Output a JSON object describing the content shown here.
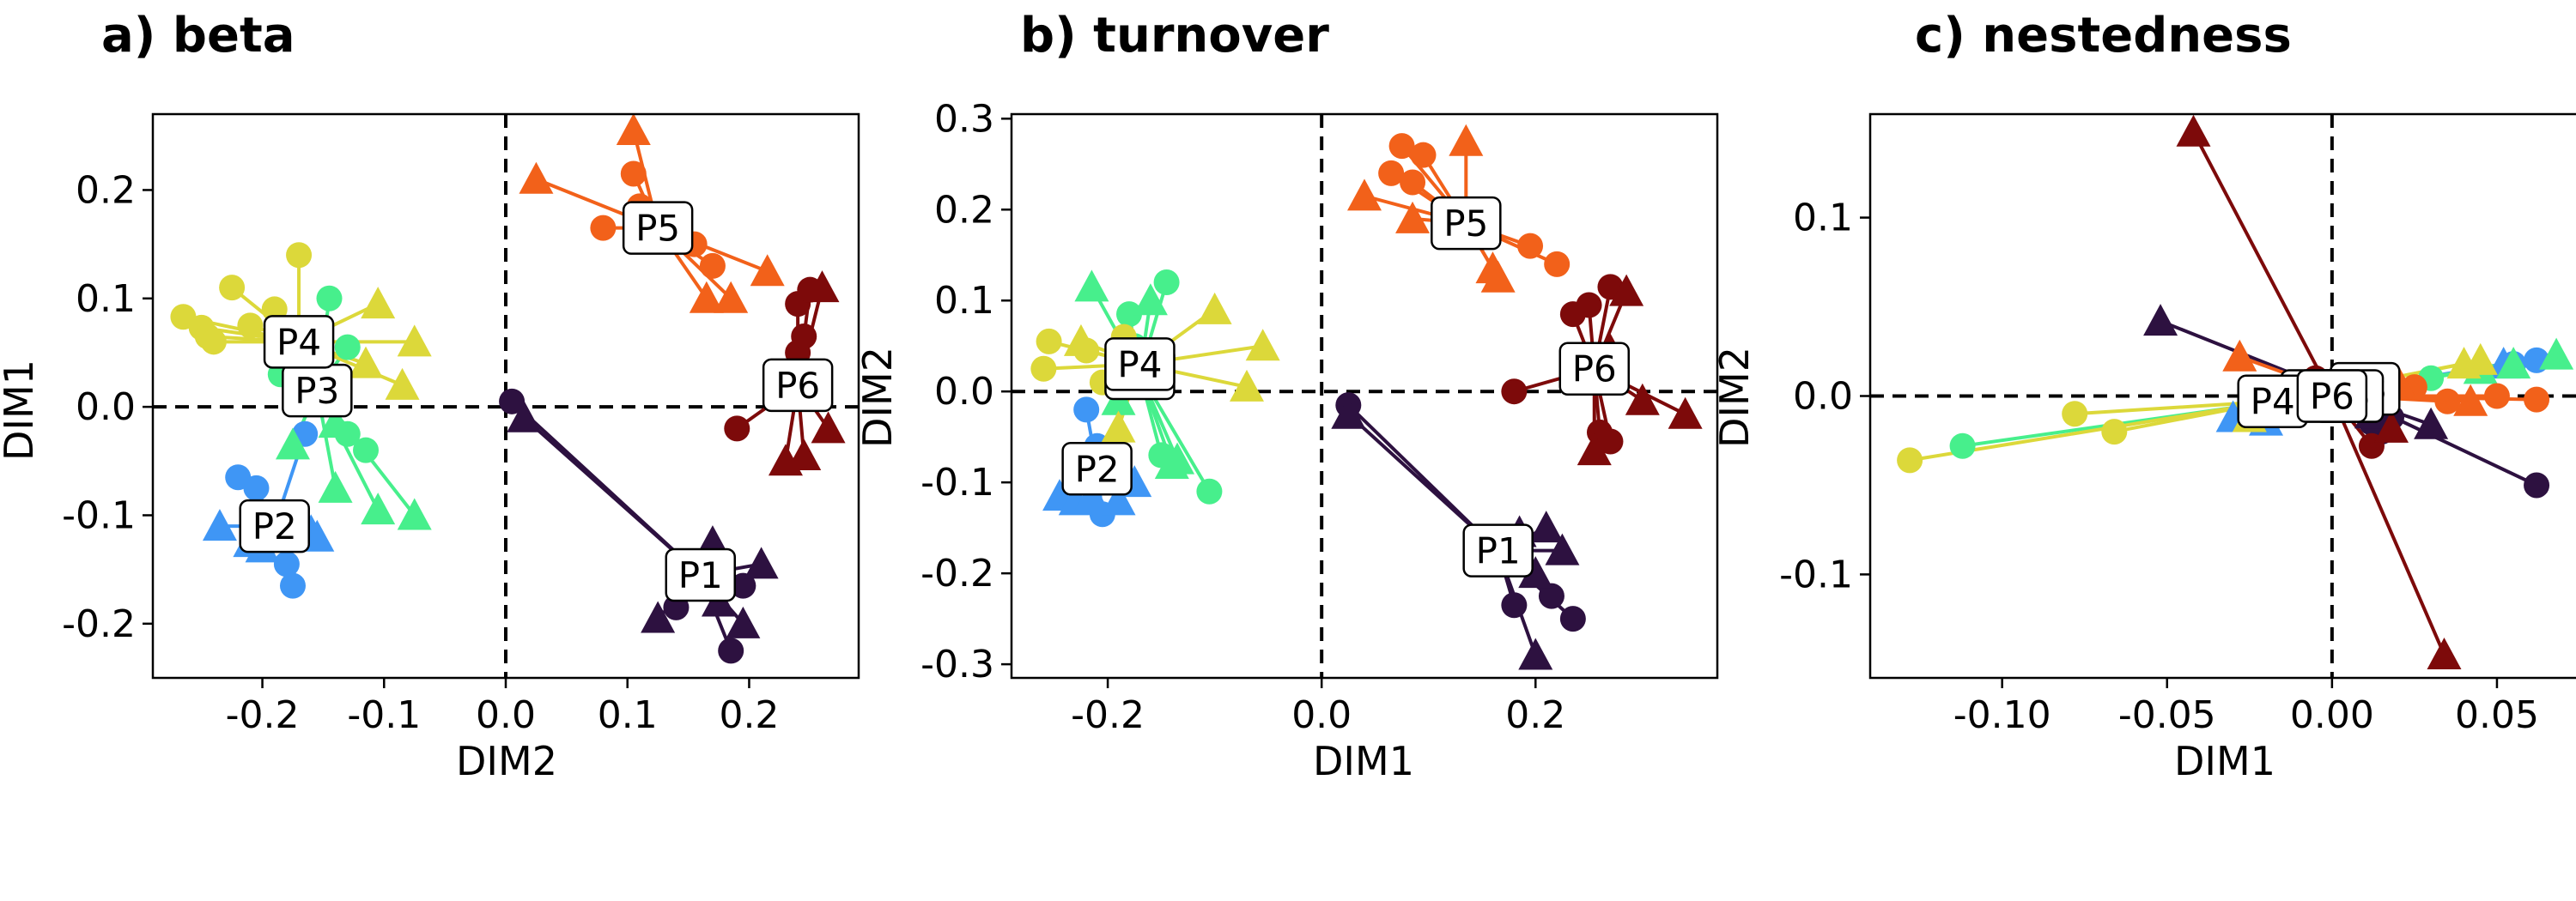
{
  "colors": {
    "P1": "#2d1140",
    "P2": "#3f96f5",
    "P3": "#47ef8c",
    "P4": "#dcd83a",
    "P5": "#f2611a",
    "P6": "#7d0a0a"
  },
  "chart_data": [
    {
      "type": "scatter",
      "title": "a) beta",
      "xlabel": "DIM2",
      "ylabel": "DIM1",
      "xlim": [
        -0.29,
        0.29
      ],
      "ylim": [
        -0.25,
        0.27
      ],
      "xticks": [
        -0.2,
        -0.1,
        0.0,
        0.1,
        0.2
      ],
      "xtick_labels": [
        "-0.2",
        "-0.1",
        "0.0",
        "0.1",
        "0.2"
      ],
      "yticks": [
        -0.2,
        -0.1,
        0.0,
        0.1,
        0.2
      ],
      "ytick_labels": [
        "-0.2",
        "-0.1",
        "0.0",
        "0.1",
        "0.2"
      ],
      "grid": false,
      "reference_lines": {
        "x": 0,
        "y": 0,
        "style": "dashed"
      },
      "groups": [
        {
          "name": "P1",
          "centroid": [
            0.16,
            -0.155
          ],
          "circles": [
            [
              0.005,
              0.005
            ],
            [
              0.14,
              -0.185
            ],
            [
              0.185,
              -0.225
            ],
            [
              0.195,
              -0.165
            ],
            [
              0.16,
              -0.165
            ]
          ],
          "triangles": [
            [
              0.015,
              -0.01
            ],
            [
              0.125,
              -0.195
            ],
            [
              0.17,
              -0.125
            ],
            [
              0.21,
              -0.145
            ],
            [
              0.195,
              -0.2
            ],
            [
              0.175,
              -0.18
            ]
          ]
        },
        {
          "name": "P2",
          "centroid": [
            -0.19,
            -0.11
          ],
          "circles": [
            [
              -0.22,
              -0.065
            ],
            [
              -0.205,
              -0.075
            ],
            [
              -0.175,
              -0.165
            ],
            [
              -0.18,
              -0.145
            ],
            [
              -0.165,
              -0.025
            ]
          ],
          "triangles": [
            [
              -0.235,
              -0.11
            ],
            [
              -0.21,
              -0.125
            ],
            [
              -0.2,
              -0.13
            ],
            [
              -0.16,
              -0.115
            ],
            [
              -0.155,
              -0.12
            ]
          ]
        },
        {
          "name": "P3",
          "centroid": [
            -0.155,
            0.015
          ],
          "circles": [
            [
              -0.145,
              0.1
            ],
            [
              -0.185,
              0.03
            ],
            [
              -0.13,
              -0.025
            ],
            [
              -0.115,
              -0.04
            ],
            [
              -0.13,
              0.055
            ]
          ],
          "triangles": [
            [
              -0.175,
              -0.035
            ],
            [
              -0.14,
              -0.015
            ],
            [
              -0.14,
              -0.075
            ],
            [
              -0.075,
              -0.1
            ],
            [
              -0.105,
              -0.095
            ]
          ]
        },
        {
          "name": "P4",
          "centroid": [
            -0.17,
            0.06
          ],
          "circles": [
            [
              -0.265,
              0.083
            ],
            [
              -0.25,
              0.073
            ],
            [
              -0.245,
              0.065
            ],
            [
              -0.225,
              0.11
            ],
            [
              -0.21,
              0.075
            ],
            [
              -0.17,
              0.14
            ],
            [
              -0.19,
              0.09
            ],
            [
              -0.24,
              0.06
            ]
          ],
          "triangles": [
            [
              -0.105,
              0.095
            ],
            [
              -0.075,
              0.06
            ],
            [
              -0.085,
              0.02
            ],
            [
              -0.115,
              0.04
            ]
          ]
        },
        {
          "name": "P5",
          "centroid": [
            0.125,
            0.165
          ],
          "circles": [
            [
              0.105,
              0.215
            ],
            [
              0.08,
              0.165
            ],
            [
              0.11,
              0.185
            ],
            [
              0.17,
              0.13
            ],
            [
              0.155,
              0.15
            ]
          ],
          "triangles": [
            [
              0.105,
              0.255
            ],
            [
              0.025,
              0.21
            ],
            [
              0.165,
              0.1
            ],
            [
              0.185,
              0.1
            ],
            [
              0.215,
              0.125
            ]
          ]
        },
        {
          "name": "P6",
          "centroid": [
            0.24,
            0.02
          ],
          "circles": [
            [
              0.19,
              -0.02
            ],
            [
              0.24,
              0.05
            ],
            [
              0.24,
              0.095
            ],
            [
              0.245,
              0.065
            ],
            [
              0.25,
              0.108
            ]
          ],
          "triangles": [
            [
              0.26,
              0.11
            ],
            [
              0.265,
              -0.02
            ],
            [
              0.245,
              -0.045
            ],
            [
              0.23,
              -0.05
            ],
            [
              0.25,
              0.02
            ]
          ]
        }
      ]
    },
    {
      "type": "scatter",
      "title": "b) turnover",
      "xlabel": "DIM1",
      "ylabel": "DIM2",
      "xlim": [
        -0.29,
        0.37
      ],
      "ylim": [
        -0.315,
        0.305
      ],
      "xticks": [
        -0.2,
        0.0,
        0.2
      ],
      "xtick_labels": [
        "-0.2",
        "0.0",
        "0.2"
      ],
      "yticks": [
        -0.3,
        -0.2,
        -0.1,
        0.0,
        0.1,
        0.2,
        0.3
      ],
      "ytick_labels": [
        "-0.3",
        "-0.2",
        "-0.1",
        "0.0",
        "0.1",
        "0.2",
        "0.3"
      ],
      "grid": false,
      "reference_lines": {
        "x": 0,
        "y": 0,
        "style": "dashed"
      },
      "groups": [
        {
          "name": "P1",
          "centroid": [
            0.165,
            -0.175
          ],
          "circles": [
            [
              0.025,
              -0.015
            ],
            [
              0.145,
              -0.185
            ],
            [
              0.18,
              -0.235
            ],
            [
              0.215,
              -0.225
            ],
            [
              0.235,
              -0.25
            ]
          ],
          "triangles": [
            [
              0.025,
              -0.025
            ],
            [
              0.185,
              -0.155
            ],
            [
              0.21,
              -0.15
            ],
            [
              0.2,
              -0.29
            ],
            [
              0.225,
              -0.175
            ],
            [
              0.2,
              -0.2
            ]
          ]
        },
        {
          "name": "P2",
          "centroid": [
            -0.21,
            -0.085
          ],
          "circles": [
            [
              -0.22,
              -0.02
            ],
            [
              -0.21,
              -0.06
            ],
            [
              -0.2,
              -0.09
            ],
            [
              -0.205,
              -0.135
            ],
            [
              -0.22,
              -0.1
            ]
          ],
          "triangles": [
            [
              -0.245,
              -0.115
            ],
            [
              -0.23,
              -0.12
            ],
            [
              -0.215,
              -0.115
            ],
            [
              -0.19,
              -0.12
            ],
            [
              -0.175,
              -0.1
            ]
          ]
        },
        {
          "name": "P3",
          "centroid": [
            -0.17,
            0.02
          ],
          "circles": [
            [
              -0.145,
              0.12
            ],
            [
              -0.18,
              0.085
            ],
            [
              -0.175,
              0.05
            ],
            [
              -0.15,
              -0.07
            ],
            [
              -0.105,
              -0.11
            ]
          ],
          "triangles": [
            [
              -0.215,
              0.115
            ],
            [
              -0.16,
              0.1
            ],
            [
              -0.19,
              -0.01
            ],
            [
              -0.135,
              -0.075
            ],
            [
              -0.14,
              -0.08
            ]
          ]
        },
        {
          "name": "P4",
          "centroid": [
            -0.17,
            0.03
          ],
          "circles": [
            [
              -0.26,
              0.025
            ],
            [
              -0.255,
              0.055
            ],
            [
              -0.22,
              0.045
            ],
            [
              -0.205,
              0.01
            ],
            [
              -0.185,
              0.06
            ]
          ],
          "triangles": [
            [
              -0.1,
              0.09
            ],
            [
              -0.055,
              0.05
            ],
            [
              -0.07,
              0.005
            ],
            [
              -0.19,
              -0.04
            ],
            [
              -0.225,
              0.055
            ]
          ]
        },
        {
          "name": "P5",
          "centroid": [
            0.135,
            0.185
          ],
          "circles": [
            [
              0.075,
              0.27
            ],
            [
              0.095,
              0.26
            ],
            [
              0.065,
              0.24
            ],
            [
              0.085,
              0.23
            ],
            [
              0.195,
              0.16
            ],
            [
              0.22,
              0.14
            ]
          ],
          "triangles": [
            [
              0.135,
              0.275
            ],
            [
              0.04,
              0.215
            ],
            [
              0.085,
              0.19
            ],
            [
              0.16,
              0.135
            ],
            [
              0.165,
              0.125
            ]
          ]
        },
        {
          "name": "P6",
          "centroid": [
            0.255,
            0.025
          ],
          "circles": [
            [
              0.18,
              0.0
            ],
            [
              0.235,
              0.085
            ],
            [
              0.25,
              0.095
            ],
            [
              0.26,
              -0.045
            ],
            [
              0.27,
              -0.055
            ],
            [
              0.27,
              0.115
            ]
          ],
          "triangles": [
            [
              0.285,
              0.11
            ],
            [
              0.3,
              -0.01
            ],
            [
              0.34,
              -0.025
            ],
            [
              0.255,
              -0.065
            ],
            [
              0.27,
              0.045
            ]
          ]
        }
      ]
    },
    {
      "type": "scatter",
      "title": "c) nestedness",
      "xlabel": "DIM1",
      "ylabel": "DIM2",
      "xlim": [
        -0.14,
        0.075
      ],
      "ylim": [
        -0.158,
        0.158
      ],
      "xticks": [
        -0.1,
        -0.05,
        0.0,
        0.05
      ],
      "xtick_labels": [
        "-0.10",
        "-0.05",
        "0.00",
        "0.05"
      ],
      "yticks": [
        -0.1,
        0.0,
        0.1
      ],
      "ytick_labels": [
        "-0.1",
        "0.0",
        "0.1"
      ],
      "grid": false,
      "reference_lines": {
        "x": 0,
        "y": 0,
        "style": "dashed"
      },
      "groups": [
        {
          "name": "P1",
          "centroid": [
            0.005,
            0.0
          ],
          "circles": [
            [
              0.062,
              -0.05
            ],
            [
              0.015,
              -0.02
            ],
            [
              0.012,
              -0.015
            ],
            [
              0.018,
              -0.012
            ]
          ],
          "triangles": [
            [
              -0.052,
              0.042
            ],
            [
              0.03,
              -0.016
            ],
            [
              0.012,
              -0.01
            ]
          ]
        },
        {
          "name": "P2",
          "centroid": [
            -0.005,
            0.0
          ],
          "circles": [
            [
              0.062,
              0.02
            ],
            [
              0.055,
              0.018
            ],
            [
              -0.02,
              -0.01
            ]
          ],
          "triangles": [
            [
              0.052,
              0.018
            ],
            [
              -0.03,
              -0.012
            ],
            [
              -0.02,
              -0.014
            ]
          ]
        },
        {
          "name": "P3",
          "centroid": [
            0.01,
            0.004
          ],
          "circles": [
            [
              -0.112,
              -0.028
            ],
            [
              -0.02,
              -0.006
            ],
            [
              0.03,
              0.01
            ]
          ],
          "triangles": [
            [
              0.068,
              0.023
            ],
            [
              0.045,
              0.015
            ],
            [
              0.055,
              0.018
            ]
          ]
        },
        {
          "name": "P4",
          "centroid": [
            -0.018,
            -0.003
          ],
          "circles": [
            [
              -0.128,
              -0.036
            ],
            [
              -0.078,
              -0.01
            ],
            [
              -0.066,
              -0.02
            ]
          ],
          "triangles": [
            [
              0.045,
              0.02
            ],
            [
              0.04,
              0.018
            ],
            [
              -0.025,
              -0.012
            ]
          ]
        },
        {
          "name": "P5",
          "centroid": [
            0.005,
            0.0
          ],
          "circles": [
            [
              0.062,
              -0.002
            ],
            [
              0.05,
              0.0
            ],
            [
              0.035,
              -0.003
            ],
            [
              0.025,
              0.005
            ]
          ],
          "triangles": [
            [
              -0.028,
              0.022
            ],
            [
              0.02,
              0.008
            ],
            [
              0.042,
              -0.003
            ]
          ]
        },
        {
          "name": "P6",
          "centroid": [
            0.0,
            0.0
          ],
          "circles": [
            [
              0.012,
              -0.028
            ],
            [
              0.005,
              0.003
            ],
            [
              -0.005,
              0.01
            ]
          ],
          "triangles": [
            [
              -0.042,
              0.148
            ],
            [
              0.034,
              -0.145
            ],
            [
              0.018,
              -0.018
            ]
          ]
        }
      ]
    }
  ]
}
